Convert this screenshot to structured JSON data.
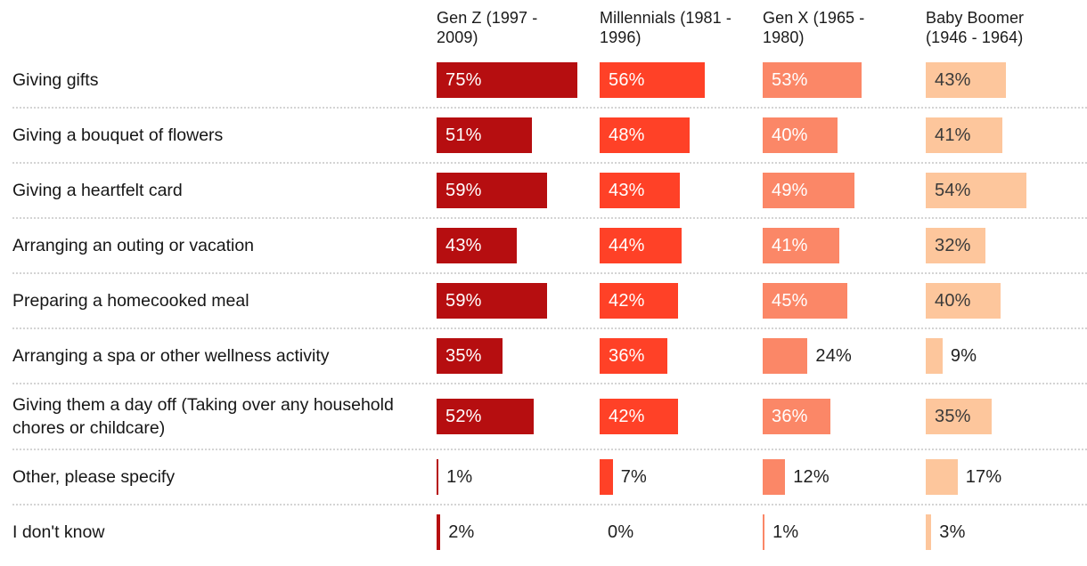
{
  "chart_data": {
    "type": "bar",
    "orientation": "horizontal",
    "title": "",
    "unit": "%",
    "grid": false,
    "value_range": [
      0,
      75
    ],
    "legend_position": "top-column-headers",
    "categories": [
      "Giving gifts",
      "Giving a bouquet of flowers",
      "Giving a heartfelt card",
      "Arranging an outing or vacation",
      "Preparing a homecooked meal",
      "Arranging a spa or other wellness activity",
      "Giving them a day off (Taking over any household chores or childcare)",
      "Other, please specify",
      "I don't know"
    ],
    "series": [
      {
        "name": "Gen Z (1997 - 2009)",
        "color": "#b60e10",
        "label_color": "#ffffff",
        "values": [
          75,
          51,
          59,
          43,
          59,
          35,
          52,
          1,
          2
        ]
      },
      {
        "name": "Millennials (1981 - 1996)",
        "color": "#ff4127",
        "label_color": "#ffffff",
        "values": [
          56,
          48,
          43,
          44,
          42,
          36,
          42,
          7,
          0
        ]
      },
      {
        "name": "Gen X (1965 - 1980)",
        "color": "#fb8767",
        "label_color": "#ffffff",
        "values": [
          53,
          40,
          49,
          41,
          45,
          24,
          36,
          12,
          1
        ]
      },
      {
        "name": "Baby Boomer (1946 - 1964)",
        "color": "#fdc69c",
        "label_color": "#3a3a3a",
        "values": [
          43,
          41,
          54,
          32,
          40,
          9,
          35,
          17,
          3
        ]
      }
    ],
    "value_labels_shown": true,
    "outside_label_color": "#1f1f1f",
    "separator_color": "#d4d4d4"
  }
}
